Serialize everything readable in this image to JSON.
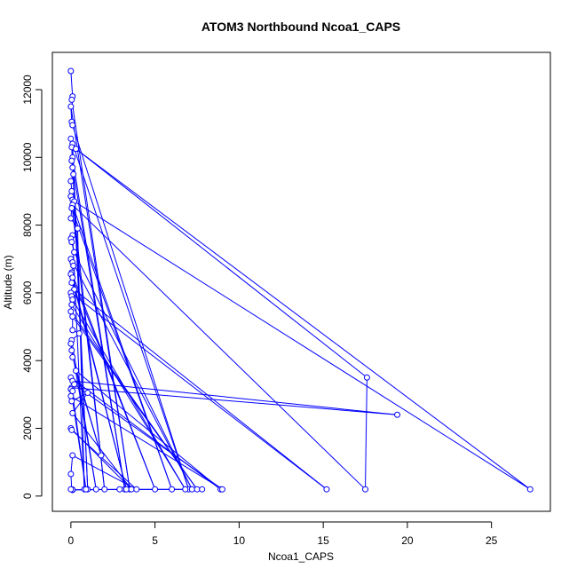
{
  "chart_data": {
    "type": "line",
    "title": "ATOM3 Northbound Ncoa1_CAPS",
    "xlabel": "Ncoa1_CAPS",
    "ylabel": "Altitude (m)",
    "xlim": [
      -1.1,
      28.5
    ],
    "ylim": [
      -450,
      13100
    ],
    "xticks": [
      0,
      5,
      10,
      15,
      20,
      25
    ],
    "yticks": [
      0,
      2000,
      4000,
      6000,
      8000,
      10000,
      12000
    ],
    "grid": false,
    "legend": "none",
    "colors": {
      "series": "#0000ff",
      "axes": "#000000"
    },
    "series": [
      {
        "marker": "open-circle",
        "x": [
          0.0,
          0.1,
          0.05,
          3.5,
          0.0,
          0.05,
          0.1,
          7.0,
          0.0,
          0.1,
          1.0,
          0.05,
          0.1,
          3.2,
          0.05,
          0.1,
          0.15,
          0.0,
          0.05,
          2.0,
          0.0,
          0.1,
          0.2,
          27.3,
          0.3,
          17.6,
          17.5,
          0.1,
          6.0,
          0.05,
          0.0,
          0.4,
          0.8,
          0.1,
          0.0,
          0.05,
          0.2,
          7.2,
          0.0,
          0.1,
          0.15,
          0.05,
          5.0,
          0.0,
          3.3,
          0.1,
          0.05,
          0.2,
          15.2,
          0.0,
          0.05,
          0.1,
          6.8,
          0.05,
          0.0,
          7.5,
          0.1,
          0.1,
          0.5,
          0.05,
          1.5,
          0.0,
          0.05,
          0.1,
          1.8,
          0.3,
          8.9,
          0.0,
          0.1,
          19.4,
          0.05,
          0.9,
          0.0,
          0.1,
          0.2,
          9.0,
          0.0,
          0.05,
          1.0,
          0.1,
          3.6,
          0.0,
          0.05,
          3.9,
          0.1,
          0.0,
          0.05,
          0.1,
          2.9,
          7.8,
          0.1,
          0.0
        ],
        "y": [
          12550,
          11800,
          11700,
          200,
          11500,
          11050,
          10950,
          200,
          10550,
          10400,
          200,
          10300,
          10000,
          200,
          9900,
          9700,
          9500,
          9300,
          9000,
          200,
          8850,
          8750,
          8700,
          200,
          10250,
          3500,
          200,
          8600,
          200,
          8500,
          8200,
          7900,
          200,
          7700,
          7600,
          7500,
          7200,
          200,
          7000,
          6900,
          6800,
          6600,
          200,
          6550,
          200,
          6450,
          6300,
          6100,
          200,
          6000,
          5900,
          5800,
          200,
          5650,
          5450,
          200,
          5300,
          4900,
          4800,
          4600,
          200,
          4500,
          4300,
          4100,
          1200,
          3700,
          200,
          3500,
          3400,
          2400,
          3200,
          200,
          3150,
          3100,
          3300,
          200,
          2950,
          2800,
          3050,
          2450,
          200,
          2000,
          1950,
          200,
          1200,
          650,
          200,
          180,
          200,
          200,
          190,
          200
        ]
      }
    ]
  }
}
